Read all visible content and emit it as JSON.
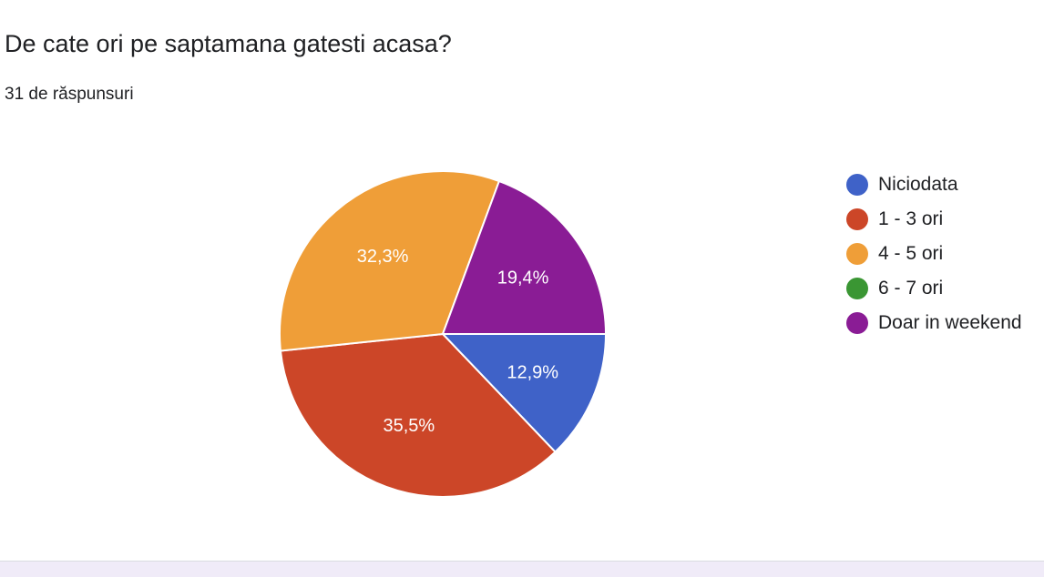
{
  "question": {
    "title": "De cate ori pe saptamana gatesti acasa?",
    "responses": "31 de răspunsuri"
  },
  "chart_data": {
    "type": "pie",
    "categories": [
      "Niciodata",
      "1 - 3 ori",
      "4 - 5 ori",
      "6 - 7 ori",
      "Doar in weekend"
    ],
    "values": [
      12.9,
      35.5,
      32.3,
      0,
      19.4
    ],
    "slice_labels": [
      "12,9%",
      "35,5%",
      "32,3%",
      "",
      "19,4%"
    ],
    "colors": [
      "#3f62c8",
      "#cc4628",
      "#ef9e38",
      "#3a9633",
      "#8a1c95"
    ],
    "start_angle_deg": 90,
    "direction": "clockwise",
    "legend_position": "right"
  }
}
